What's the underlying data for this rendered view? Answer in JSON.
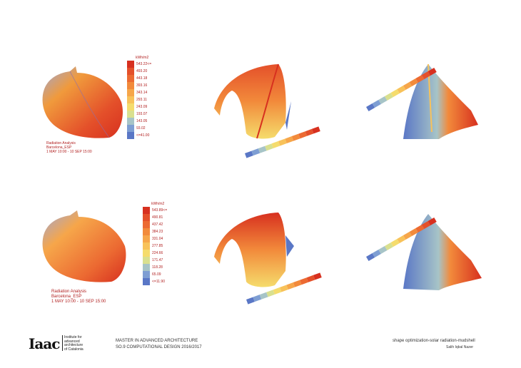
{
  "legend_unit": "kWh/m2",
  "legend_top": {
    "values": [
      "543.22<=",
      "493.20",
      "443.18",
      "393.16",
      "343.14",
      "293.11",
      "243.09",
      "193.07",
      "143.05",
      "93.02",
      "<=41.00"
    ],
    "colors": [
      "#d7301f",
      "#e4502a",
      "#ec6a32",
      "#f28a3b",
      "#f6a64a",
      "#f8c25a",
      "#f5dc6c",
      "#d9e08f",
      "#a7c4c7",
      "#7e9ed3",
      "#5a77c6"
    ]
  },
  "legend_bottom": {
    "values": [
      "543.89<=",
      "490.81",
      "437.42",
      "384.23",
      "331.04",
      "277.85",
      "224.66",
      "171.47",
      "118.28",
      "65.09",
      "<=11.90"
    ],
    "colors": [
      "#d7301f",
      "#e4502a",
      "#ec6a32",
      "#f28a3b",
      "#f6a64a",
      "#f8c25a",
      "#f5dc6c",
      "#d9e08f",
      "#a7c4c7",
      "#7e9ed3",
      "#5a77c6"
    ]
  },
  "caption_top": {
    "line1": "Radiation Analysis",
    "line2": "Barcelona_ESP",
    "line3": "1 MAY 10:00 - 10 SEP 15:00"
  },
  "caption_bottom": {
    "line1": "Radiation Analysis",
    "line2": "Barcelona_ESP",
    "line3": "1 MAY 10:00 - 10 SEP 15:00"
  },
  "logo": {
    "mark": "Iaac",
    "text1": "Institute for",
    "text2": "advanced",
    "text3": "architecture",
    "text4": "of Catalonia"
  },
  "footer": {
    "program": "MASTER IN ADVANCED ARCHITECTURE",
    "course": "SO.9 COMPUTATIONAL DESIGN 2016/2017",
    "project": "shape optimization-solar radiation-mudshell",
    "author": "Salih Iqbal Nazer"
  }
}
